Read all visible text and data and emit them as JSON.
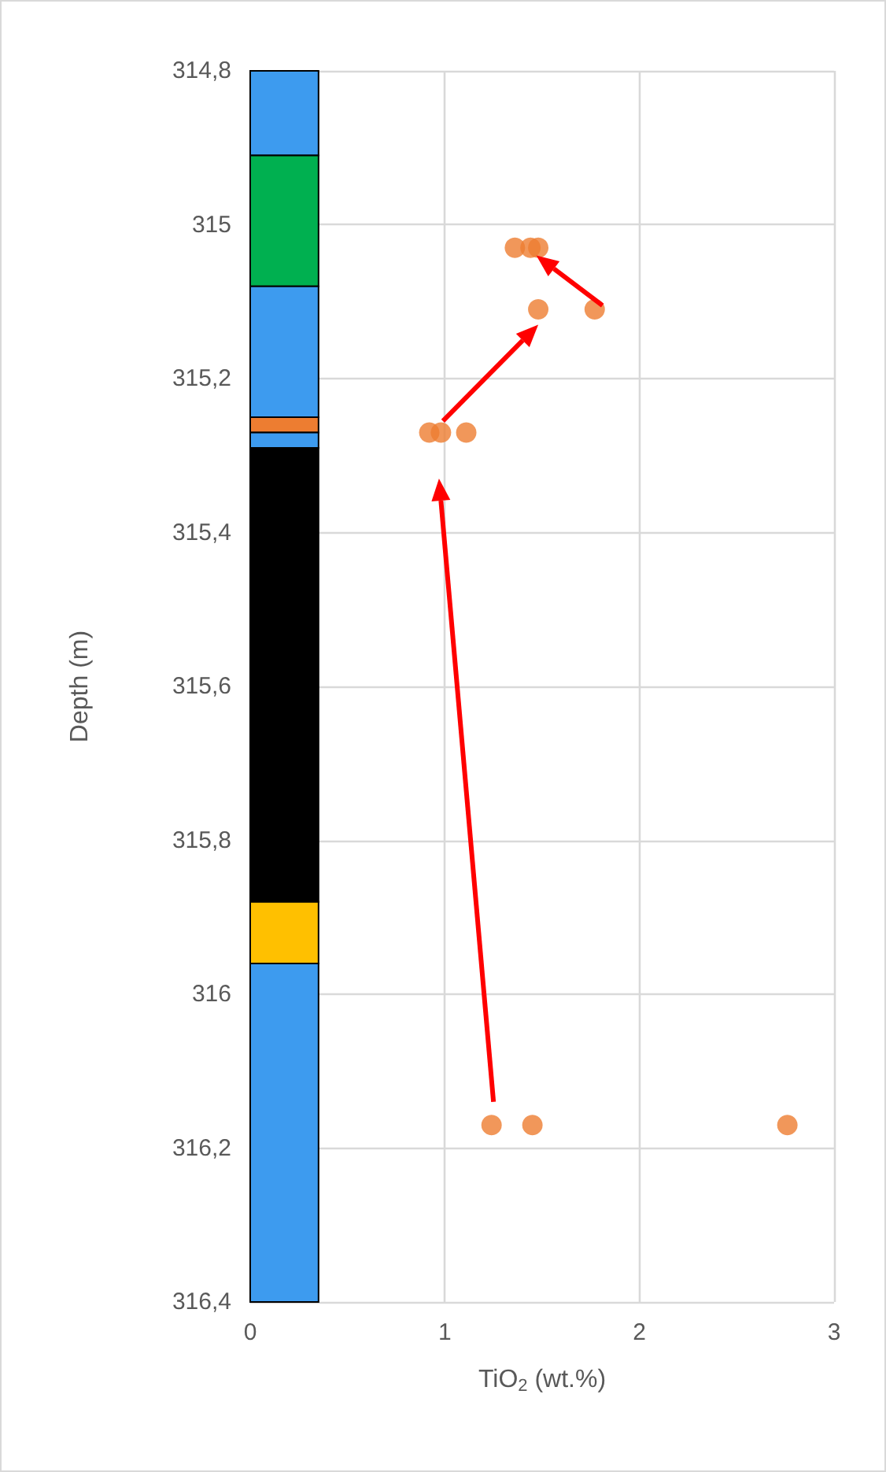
{
  "chart_data": {
    "type": "scatter",
    "xlabel": "TiO$_{2}$ (wt.%)",
    "ylabel": "Depth (m)",
    "x": [
      1.36,
      1.44,
      1.48,
      1.48,
      1.77,
      0.92,
      0.98,
      1.11,
      1.24,
      1.45,
      2.76
    ],
    "series": [
      {
        "color": "#ed7d31",
        "values": [
          315.03,
          315.03,
          315.03,
          315.11,
          315.11,
          315.27,
          315.27,
          315.27,
          316.17,
          316.17,
          316.17
        ]
      }
    ],
    "xlim": [
      0,
      3
    ],
    "xticks": [
      0,
      1,
      2,
      3
    ],
    "ylim": [
      316.4,
      314.8
    ],
    "yticks": [
      {
        "value": 314.8,
        "label": "314,8"
      },
      {
        "value": 315,
        "label": "315"
      },
      {
        "value": 315.2,
        "label": "315,2"
      },
      {
        "value": 315.4,
        "label": "315,4"
      },
      {
        "value": 315.6,
        "label": "315,6"
      },
      {
        "value": 315.8,
        "label": "315,8"
      },
      {
        "value": 316,
        "label": "316"
      },
      {
        "value": 316.2,
        "label": "316,2"
      },
      {
        "value": 316.4,
        "label": "316,4"
      }
    ],
    "bands": [
      {
        "axis": "y",
        "from": 314.8,
        "to": 314.91,
        "color": "#3d9bef"
      },
      {
        "axis": "y",
        "from": 314.91,
        "to": 315.08,
        "color": "#00b050"
      },
      {
        "axis": "y",
        "from": 315.08,
        "to": 315.25,
        "color": "#3d9bef"
      },
      {
        "axis": "y",
        "from": 315.25,
        "to": 315.27,
        "color": "#ed7d31"
      },
      {
        "axis": "y",
        "from": 315.27,
        "to": 315.29,
        "color": "#3d9bef"
      },
      {
        "axis": "y",
        "from": 315.29,
        "to": 315.88,
        "color": "#000000"
      },
      {
        "axis": "y",
        "from": 315.88,
        "to": 315.96,
        "color": "#ffc000"
      },
      {
        "axis": "y",
        "from": 315.96,
        "to": 316.4,
        "color": "#3d9bef"
      }
    ],
    "grid": true,
    "marker": "circle"
  }
}
